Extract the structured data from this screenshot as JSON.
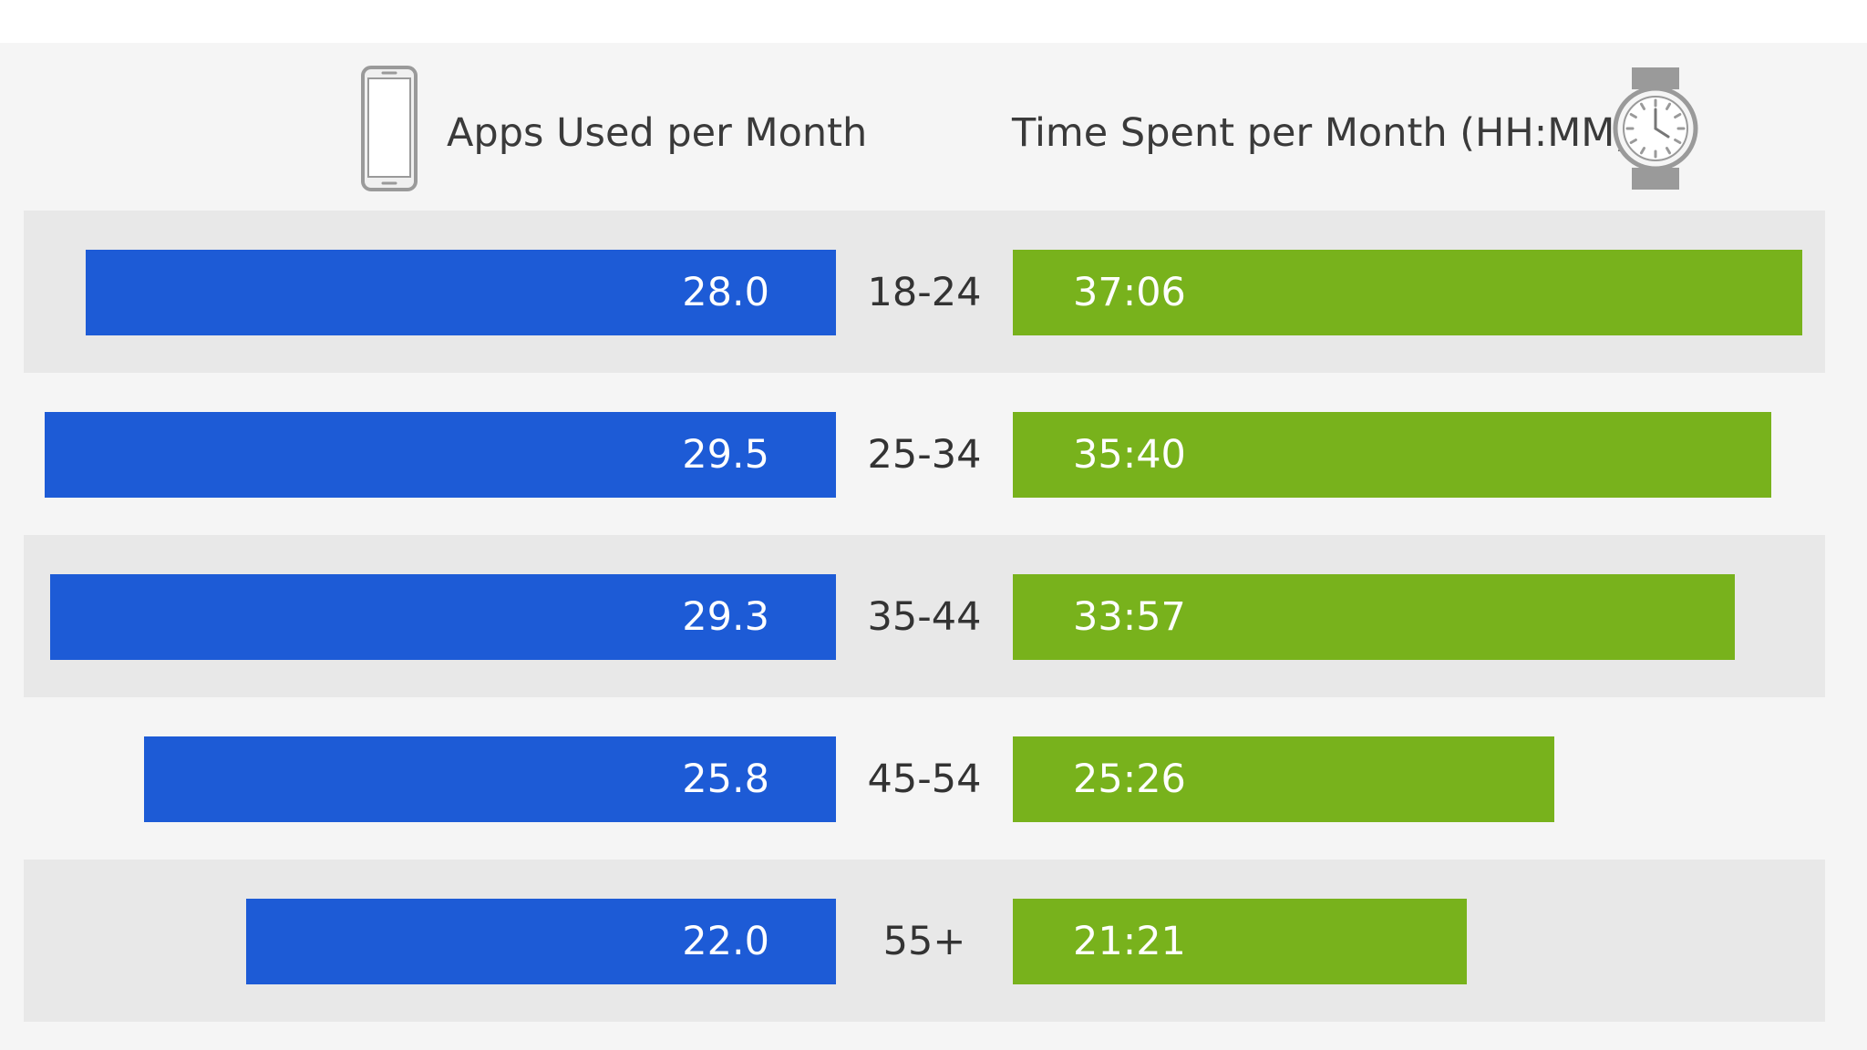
{
  "colors": {
    "background": "#f5f5f5",
    "band": "#e8e8e8",
    "apps_bar": "#1d5bd6",
    "time_bar": "#78b21c",
    "icon": "#9a9a9a"
  },
  "icons": {
    "left": "smartphone-icon",
    "right": "wristwatch-icon"
  },
  "header": {
    "left_label": "Apps Used per Month",
    "right_label": "Time Spent per Month (HH:MM)"
  },
  "chart_data": {
    "type": "bar",
    "orientation": "horizontal",
    "categories": [
      "18-24",
      "25-34",
      "35-44",
      "45-54",
      "55+"
    ],
    "series": [
      {
        "name": "Apps Used per Month",
        "values": [
          28.0,
          29.5,
          29.3,
          25.8,
          22.0
        ],
        "labels": [
          "28.0",
          "29.5",
          "29.3",
          "25.8",
          "22.0"
        ]
      },
      {
        "name": "Time Spent per Month (HH:MM)",
        "values": [
          37.1,
          35.667,
          33.95,
          25.433,
          21.35
        ],
        "labels": [
          "37:06",
          "35:40",
          "33:57",
          "25:26",
          "21:21"
        ]
      }
    ],
    "grid": false,
    "legend": "top"
  }
}
